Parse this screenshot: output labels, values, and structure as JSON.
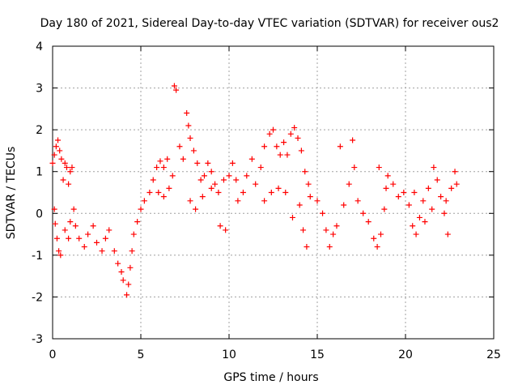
{
  "chart_data": {
    "type": "scatter",
    "title": "Day 180 of 2021, Sidereal Day-to-day VTEC variation (SDTVAR) for receiver ous2",
    "xlabel": "GPS time / hours",
    "ylabel": "SDTVAR / TECUs",
    "xlim": [
      0,
      25
    ],
    "ylim": [
      -3,
      4
    ],
    "xticks": [
      "0",
      "5",
      "10",
      "15",
      "20",
      "25"
    ],
    "yticks": [
      "-3",
      "-2",
      "-1",
      "0",
      "1",
      "2",
      "3",
      "4"
    ],
    "grid": true,
    "marker": "+",
    "color": "#ff0000",
    "series": [
      {
        "name": "SDTVAR",
        "points": [
          [
            0.0,
            1.2
          ],
          [
            0.1,
            1.4
          ],
          [
            0.2,
            1.6
          ],
          [
            0.3,
            1.75
          ],
          [
            0.4,
            1.5
          ],
          [
            0.5,
            1.3
          ],
          [
            0.1,
            0.1
          ],
          [
            0.15,
            -0.25
          ],
          [
            0.25,
            -0.6
          ],
          [
            0.35,
            -0.9
          ],
          [
            0.45,
            -1.0
          ],
          [
            0.6,
            0.8
          ],
          [
            0.7,
            1.2
          ],
          [
            0.8,
            1.1
          ],
          [
            0.9,
            0.7
          ],
          [
            1.0,
            1.0
          ],
          [
            1.1,
            1.1
          ],
          [
            0.7,
            -0.4
          ],
          [
            0.9,
            -0.6
          ],
          [
            1.0,
            -0.2
          ],
          [
            1.2,
            0.1
          ],
          [
            1.3,
            -0.3
          ],
          [
            1.5,
            -0.6
          ],
          [
            1.8,
            -0.8
          ],
          [
            2.0,
            -0.5
          ],
          [
            2.3,
            -0.3
          ],
          [
            2.5,
            -0.7
          ],
          [
            2.8,
            -0.9
          ],
          [
            3.0,
            -0.6
          ],
          [
            3.2,
            -0.4
          ],
          [
            3.5,
            -0.9
          ],
          [
            3.7,
            -1.2
          ],
          [
            3.9,
            -1.4
          ],
          [
            4.0,
            -1.6
          ],
          [
            4.2,
            -1.95
          ],
          [
            4.3,
            -1.7
          ],
          [
            4.4,
            -1.3
          ],
          [
            4.5,
            -0.9
          ],
          [
            4.6,
            -0.5
          ],
          [
            4.8,
            -0.2
          ],
          [
            5.0,
            0.1
          ],
          [
            5.2,
            0.3
          ],
          [
            5.5,
            0.5
          ],
          [
            5.7,
            0.8
          ],
          [
            5.9,
            1.1
          ],
          [
            6.1,
            1.25
          ],
          [
            6.3,
            1.1
          ],
          [
            6.5,
            1.3
          ],
          [
            6.0,
            0.5
          ],
          [
            6.3,
            0.4
          ],
          [
            6.6,
            0.6
          ],
          [
            6.8,
            0.9
          ],
          [
            6.9,
            3.05
          ],
          [
            7.0,
            2.95
          ],
          [
            7.2,
            1.6
          ],
          [
            7.4,
            1.3
          ],
          [
            7.6,
            2.4
          ],
          [
            7.7,
            2.1
          ],
          [
            7.8,
            1.8
          ],
          [
            8.0,
            1.5
          ],
          [
            8.2,
            1.2
          ],
          [
            8.4,
            0.8
          ],
          [
            8.6,
            0.9
          ],
          [
            8.8,
            1.2
          ],
          [
            9.0,
            1.0
          ],
          [
            9.2,
            0.7
          ],
          [
            7.8,
            0.3
          ],
          [
            8.1,
            0.1
          ],
          [
            8.5,
            0.4
          ],
          [
            9.0,
            0.6
          ],
          [
            9.4,
            0.5
          ],
          [
            9.7,
            0.8
          ],
          [
            10.0,
            0.9
          ],
          [
            10.2,
            1.2
          ],
          [
            10.4,
            0.8
          ],
          [
            9.5,
            -0.3
          ],
          [
            9.8,
            -0.4
          ],
          [
            10.5,
            0.3
          ],
          [
            10.8,
            0.5
          ],
          [
            11.0,
            0.9
          ],
          [
            11.3,
            1.3
          ],
          [
            11.5,
            0.7
          ],
          [
            11.8,
            1.1
          ],
          [
            12.0,
            1.6
          ],
          [
            12.3,
            1.9
          ],
          [
            12.5,
            2.0
          ],
          [
            12.7,
            1.6
          ],
          [
            12.9,
            1.4
          ],
          [
            13.1,
            1.7
          ],
          [
            13.3,
            1.4
          ],
          [
            13.5,
            1.9
          ],
          [
            13.7,
            2.05
          ],
          [
            13.9,
            1.8
          ],
          [
            14.1,
            1.5
          ],
          [
            14.3,
            1.0
          ],
          [
            14.5,
            0.7
          ],
          [
            12.0,
            0.3
          ],
          [
            12.4,
            0.5
          ],
          [
            12.8,
            0.6
          ],
          [
            13.2,
            0.5
          ],
          [
            13.6,
            -0.1
          ],
          [
            14.0,
            0.2
          ],
          [
            14.2,
            -0.4
          ],
          [
            14.4,
            -0.8
          ],
          [
            14.6,
            0.4
          ],
          [
            15.0,
            0.3
          ],
          [
            15.3,
            0.0
          ],
          [
            15.5,
            -0.4
          ],
          [
            15.7,
            -0.8
          ],
          [
            15.9,
            -0.5
          ],
          [
            16.1,
            -0.3
          ],
          [
            16.3,
            1.6
          ],
          [
            16.5,
            0.2
          ],
          [
            16.8,
            0.7
          ],
          [
            17.0,
            1.75
          ],
          [
            17.1,
            1.1
          ],
          [
            17.3,
            0.3
          ],
          [
            17.6,
            0.0
          ],
          [
            17.9,
            -0.2
          ],
          [
            18.2,
            -0.6
          ],
          [
            18.4,
            -0.8
          ],
          [
            18.6,
            -0.5
          ],
          [
            18.8,
            0.1
          ],
          [
            19.0,
            0.9
          ],
          [
            19.3,
            0.7
          ],
          [
            19.6,
            0.4
          ],
          [
            19.9,
            0.5
          ],
          [
            18.5,
            1.1
          ],
          [
            18.9,
            0.6
          ],
          [
            20.2,
            0.2
          ],
          [
            20.4,
            -0.3
          ],
          [
            20.6,
            -0.5
          ],
          [
            20.8,
            -0.1
          ],
          [
            21.0,
            0.3
          ],
          [
            21.3,
            0.6
          ],
          [
            21.6,
            1.1
          ],
          [
            21.8,
            0.8
          ],
          [
            22.0,
            0.4
          ],
          [
            22.2,
            0.0
          ],
          [
            22.4,
            -0.5
          ],
          [
            22.6,
            0.6
          ],
          [
            22.8,
            1.0
          ],
          [
            22.9,
            0.7
          ],
          [
            20.5,
            0.5
          ],
          [
            21.1,
            -0.2
          ],
          [
            21.5,
            0.1
          ],
          [
            22.3,
            0.3
          ]
        ]
      }
    ]
  }
}
